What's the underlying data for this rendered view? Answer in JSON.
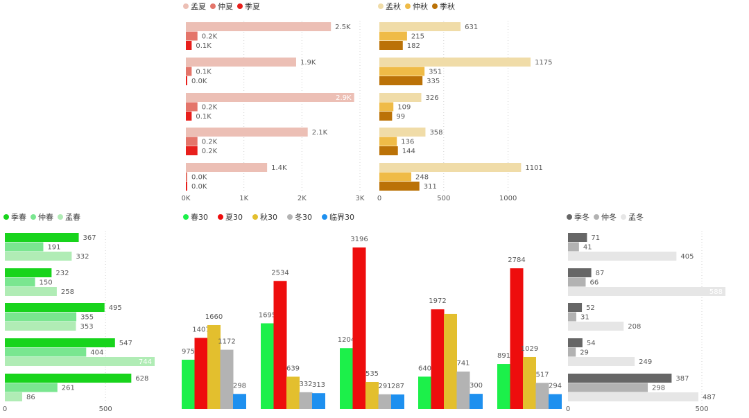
{
  "colors": {
    "meng_xia": "#ecbfb5",
    "zhong_xia": "#e4756a",
    "ji_xia": "#e81f1c",
    "meng_qiu": "#f0dca8",
    "zhong_qiu": "#efbb47",
    "ji_qiu": "#bb7207",
    "ji_chun": "#18d41c",
    "zhong_chun": "#7ae690",
    "meng_chun": "#b0ecb5",
    "ji_dong": "#666666",
    "zhong_dong": "#b2b2b2",
    "meng_dong": "#e6e6e6",
    "chun30": "#1cf04a",
    "xia30": "#ee0d0d",
    "qiu30": "#e3bf2e",
    "dong30": "#b3b3b3",
    "linjie30": "#1e90ef"
  },
  "chart_data": [
    {
      "id": "summer",
      "type": "bar",
      "orientation": "horizontal",
      "legend": [
        "孟夏",
        "仲夏",
        "季夏"
      ],
      "series": [
        {
          "name": "孟夏",
          "values": [
            2.5,
            1.9,
            2.9,
            2.1,
            1.4
          ],
          "labels": [
            "2.5K",
            "1.9K",
            "2.9K",
            "2.1K",
            "1.4K"
          ],
          "color_key": "meng_xia"
        },
        {
          "name": "仲夏",
          "values": [
            0.2,
            0.1,
            0.2,
            0.2,
            0.0
          ],
          "labels": [
            "0.2K",
            "0.1K",
            "0.2K",
            "0.2K",
            "0.0K"
          ],
          "color_key": "zhong_xia"
        },
        {
          "name": "季夏",
          "values": [
            0.1,
            0.0,
            0.1,
            0.2,
            0.0
          ],
          "labels": [
            "0.1K",
            "0.0K",
            "0.1K",
            "0.2K",
            "0.0K"
          ],
          "color_key": "ji_xia"
        }
      ],
      "xlim": [
        0,
        3
      ],
      "ticks": [
        0,
        1,
        2,
        3
      ],
      "tick_labels": [
        "0K",
        "1K",
        "2K",
        "3K"
      ]
    },
    {
      "id": "autumn",
      "type": "bar",
      "orientation": "horizontal",
      "legend": [
        "孟秋",
        "仲秋",
        "季秋"
      ],
      "series": [
        {
          "name": "孟秋",
          "values": [
            631,
            1175,
            326,
            358,
            1101
          ],
          "color_key": "meng_qiu"
        },
        {
          "name": "仲秋",
          "values": [
            215,
            351,
            109,
            136,
            248
          ],
          "color_key": "zhong_qiu"
        },
        {
          "name": "季秋",
          "values": [
            182,
            335,
            99,
            144,
            311
          ],
          "color_key": "ji_qiu"
        }
      ],
      "xlim": [
        0,
        1250
      ],
      "ticks": [
        0,
        500,
        1000
      ],
      "tick_labels": [
        "0",
        "500",
        "1000"
      ]
    },
    {
      "id": "spring",
      "type": "bar",
      "orientation": "horizontal",
      "legend": [
        "季春",
        "仲春",
        "孟春"
      ],
      "series": [
        {
          "name": "季春",
          "values": [
            367,
            232,
            495,
            547,
            628
          ],
          "color_key": "ji_chun"
        },
        {
          "name": "仲春",
          "values": [
            191,
            150,
            355,
            404,
            261
          ],
          "color_key": "zhong_chun"
        },
        {
          "name": "孟春",
          "values": [
            332,
            258,
            353,
            744,
            86
          ],
          "color_key": "meng_chun"
        }
      ],
      "xlim": [
        0,
        744
      ],
      "ticks": [
        0,
        500
      ],
      "tick_labels": [
        "0",
        "500"
      ]
    },
    {
      "id": "thirty",
      "type": "bar",
      "orientation": "vertical",
      "legend": [
        "春30",
        "夏30",
        "秋30",
        "冬30",
        "临界30"
      ],
      "series": [
        {
          "name": "春30",
          "values": [
            975,
            1695,
            1204,
            640,
            891
          ],
          "color_key": "chun30"
        },
        {
          "name": "夏30",
          "values": [
            1407,
            2534,
            3196,
            1972,
            2784
          ],
          "color_key": "xia30"
        },
        {
          "name": "秋30",
          "values": [
            1660,
            639,
            535,
            1880,
            1029
          ],
          "labels": [
            "1660",
            "639",
            "535",
            "",
            "1029"
          ],
          "color_key": "qiu30"
        },
        {
          "name": "冬30",
          "values": [
            1172,
            332,
            291,
            741,
            517
          ],
          "color_key": "dong30"
        },
        {
          "name": "临界30",
          "values": [
            298,
            313,
            287,
            300,
            294
          ],
          "color_key": "linjie30"
        }
      ],
      "ylim": [
        0,
        3300
      ]
    },
    {
      "id": "winter",
      "type": "bar",
      "orientation": "horizontal",
      "legend": [
        "季冬",
        "仲冬",
        "孟冬"
      ],
      "series": [
        {
          "name": "季冬",
          "values": [
            71,
            87,
            52,
            54,
            387
          ],
          "color_key": "ji_dong"
        },
        {
          "name": "仲冬",
          "values": [
            41,
            66,
            31,
            29,
            298
          ],
          "color_key": "zhong_dong"
        },
        {
          "name": "孟冬",
          "values": [
            405,
            588,
            208,
            249,
            487
          ],
          "color_key": "meng_dong"
        }
      ],
      "xlim": [
        0,
        588
      ],
      "ticks": [
        0,
        500
      ],
      "tick_labels": [
        "0",
        "500"
      ]
    }
  ]
}
